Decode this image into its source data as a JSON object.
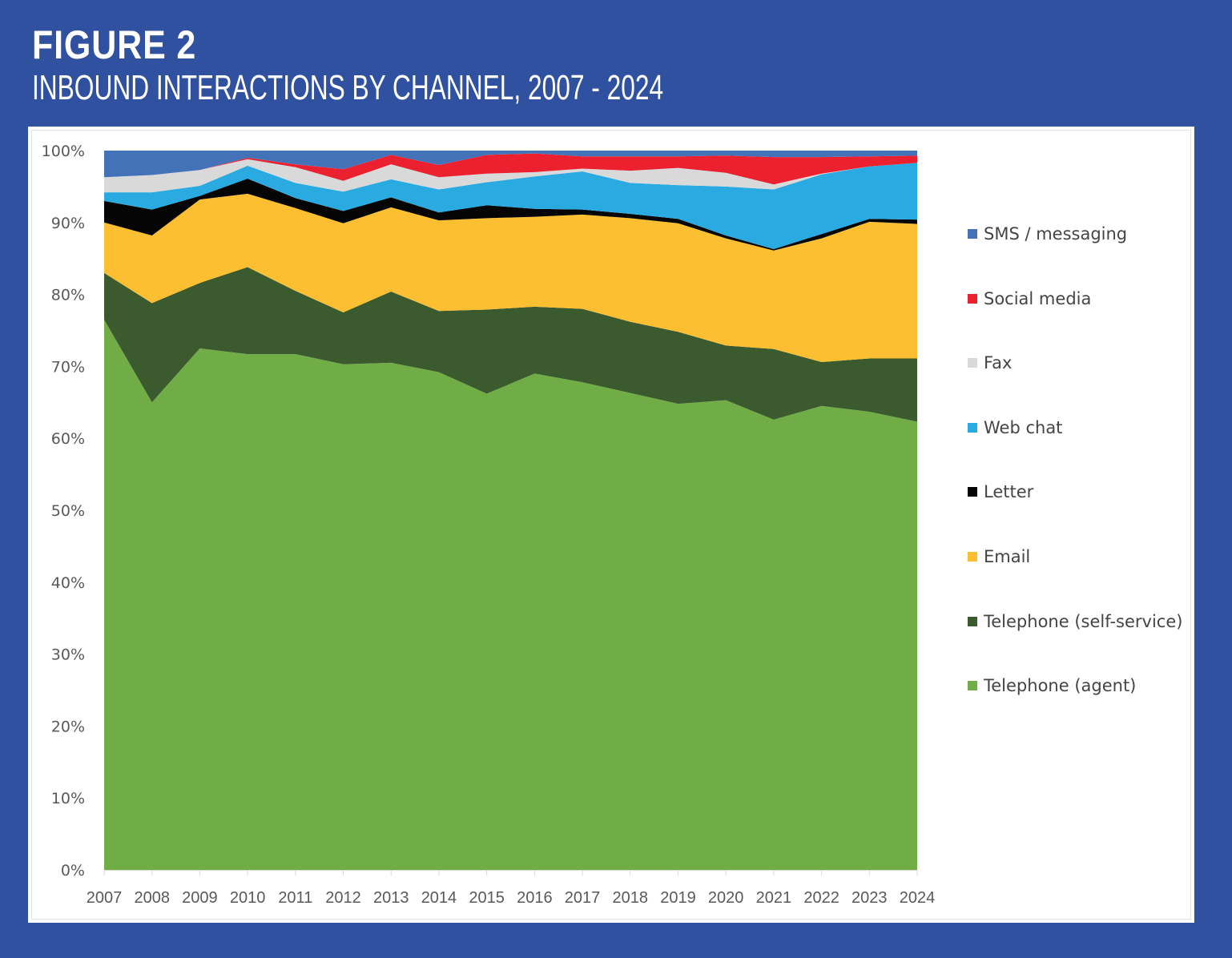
{
  "header": {
    "figure_label": "FIGURE 2",
    "title": "INBOUND INTERACTIONS BY CHANNEL, 2007 - 2024"
  },
  "colors": {
    "background": "#3050a0",
    "panel": "#ffffff"
  },
  "chart_data": {
    "type": "area",
    "stacked": true,
    "normalized": true,
    "title": "INBOUND INTERACTIONS BY CHANNEL, 2007 - 2024",
    "xlabel": "",
    "ylabel": "",
    "ylim": [
      0,
      100
    ],
    "y_ticks": [
      "0%",
      "10%",
      "20%",
      "30%",
      "40%",
      "50%",
      "60%",
      "70%",
      "80%",
      "90%",
      "100%"
    ],
    "grid": false,
    "legend_position": "right",
    "categories": [
      "2007",
      "2008",
      "2009",
      "2010",
      "2011",
      "2012",
      "2013",
      "2014",
      "2015",
      "2016",
      "2017",
      "2018",
      "2019",
      "2020",
      "2021",
      "2022",
      "2023",
      "2024"
    ],
    "series": [
      {
        "name": "Telephone (agent)",
        "color": "#70ad47",
        "values": [
          76.5,
          65.0,
          72.5,
          71.7,
          71.7,
          70.3,
          70.5,
          69.2,
          66.2,
          69.0,
          67.8,
          66.3,
          64.8,
          65.3,
          62.6,
          64.5,
          63.7,
          62.3
        ]
      },
      {
        "name": "Telephone (self-service)",
        "color": "#3b5a2e",
        "values": [
          6.5,
          13.8,
          9.1,
          12.1,
          8.8,
          7.2,
          9.9,
          8.5,
          11.7,
          9.3,
          10.2,
          9.9,
          10.0,
          7.6,
          9.8,
          6.1,
          7.4,
          8.8
        ]
      },
      {
        "name": "Email",
        "color": "#fbbf31",
        "values": [
          7.0,
          9.4,
          11.6,
          10.2,
          11.5,
          12.4,
          11.7,
          12.6,
          12.7,
          12.5,
          13.1,
          14.4,
          15.1,
          14.9,
          13.7,
          17.2,
          19.0,
          18.7
        ]
      },
      {
        "name": "Letter",
        "color": "#050505",
        "values": [
          3.0,
          3.6,
          0.5,
          2.1,
          1.4,
          1.7,
          1.4,
          1.1,
          1.8,
          1.1,
          0.7,
          0.6,
          0.6,
          0.4,
          0.2,
          0.6,
          0.4,
          0.6
        ]
      },
      {
        "name": "Web chat",
        "color": "#29abe2",
        "values": [
          1.2,
          2.4,
          1.4,
          1.8,
          2.1,
          2.7,
          2.5,
          3.2,
          3.2,
          4.5,
          5.3,
          4.3,
          4.7,
          6.8,
          8.3,
          8.3,
          7.3,
          7.9
        ]
      },
      {
        "name": "Fax",
        "color": "#d9d9d9",
        "values": [
          2.1,
          2.4,
          2.2,
          0.9,
          2.2,
          1.5,
          2.1,
          1.7,
          1.2,
          0.6,
          0.4,
          1.7,
          2.4,
          1.9,
          0.7,
          0.1,
          0.0,
          0.0
        ]
      },
      {
        "name": "Social media",
        "color": "#ec2130",
        "values": [
          0.0,
          0.0,
          0.0,
          0.2,
          0.4,
          1.6,
          1.3,
          1.7,
          2.6,
          2.6,
          1.7,
          2.0,
          1.6,
          2.4,
          3.8,
          2.3,
          1.4,
          1.0
        ]
      },
      {
        "name": "SMS / messaging",
        "color": "#4472b8",
        "values": [
          3.7,
          3.4,
          2.7,
          1.0,
          1.9,
          2.6,
          0.6,
          2.0,
          0.6,
          0.4,
          0.8,
          0.8,
          0.8,
          0.7,
          0.9,
          0.9,
          0.8,
          0.7
        ]
      }
    ],
    "legend_order": [
      "SMS / messaging",
      "Social media",
      "Fax",
      "Web chat",
      "Letter",
      "Email",
      "Telephone (self-service)",
      "Telephone (agent)"
    ]
  }
}
